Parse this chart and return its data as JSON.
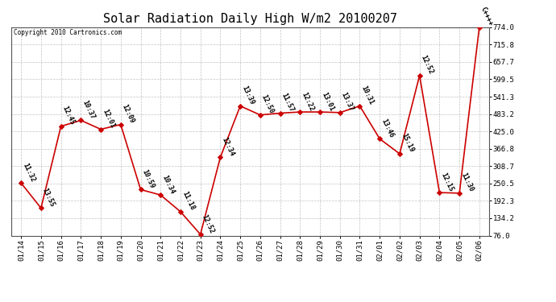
{
  "title": "Solar Radiation Daily High W/m2 20100207",
  "copyright": "Copyright 2010 Cartronics.com",
  "dates": [
    "01/14",
    "01/15",
    "01/16",
    "01/17",
    "01/18",
    "01/19",
    "01/20",
    "01/21",
    "01/22",
    "01/23",
    "01/24",
    "01/25",
    "01/26",
    "01/27",
    "01/28",
    "01/29",
    "01/30",
    "01/31",
    "02/01",
    "02/02",
    "02/03",
    "02/04",
    "02/05",
    "02/06"
  ],
  "values": [
    252,
    168,
    442,
    462,
    432,
    448,
    230,
    212,
    156,
    80,
    338,
    510,
    480,
    486,
    490,
    490,
    488,
    510,
    400,
    350,
    612,
    220,
    218,
    774
  ],
  "labels": [
    "11:32",
    "13:55",
    "12:45",
    "10:37",
    "12:01",
    "12:09",
    "10:59",
    "10:34",
    "11:18",
    "12:52",
    "12:34",
    "13:39",
    "12:50",
    "11:57",
    "12:22",
    "13:01",
    "13:37",
    "10:31",
    "13:46",
    "15:19",
    "12:52",
    "12:15",
    "11:30",
    "C++++"
  ],
  "line_color": "#cc0000",
  "marker_color": "#cc0000",
  "bg_color": "#ffffff",
  "plot_bg_color": "#ffffff",
  "grid_color": "#bbbbbb",
  "title_fontsize": 11,
  "label_fontsize": 6.0,
  "ylim_min": 76.0,
  "ylim_max": 774.0,
  "yticks": [
    76.0,
    134.2,
    192.3,
    250.5,
    308.7,
    366.8,
    425.0,
    483.2,
    541.3,
    599.5,
    657.7,
    715.8,
    774.0
  ]
}
